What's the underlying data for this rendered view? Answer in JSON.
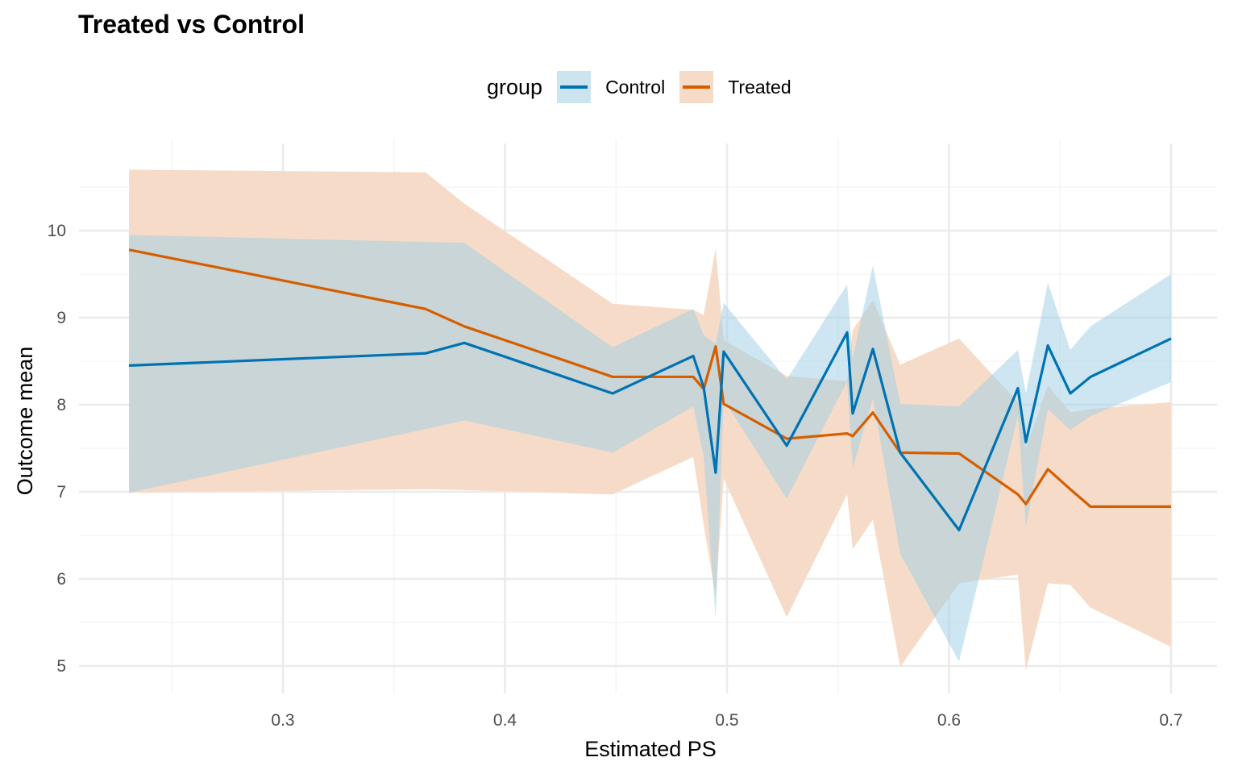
{
  "chart_data": {
    "type": "line",
    "title": "Treated vs Control",
    "xlabel": "Estimated PS",
    "ylabel": "Outcome mean",
    "xlim": [
      0.215,
      0.712
    ],
    "ylim": [
      4.65,
      11.1
    ],
    "xticks": [
      0.3,
      0.4,
      0.5,
      0.6,
      0.7
    ],
    "xtick_labels": [
      "0.3",
      "0.4",
      "0.5",
      "0.6",
      "0.7"
    ],
    "yticks": [
      5,
      6,
      7,
      8,
      9,
      10
    ],
    "ytick_labels": [
      "5",
      "6",
      "7",
      "8",
      "9",
      "10"
    ],
    "grid": true,
    "legend": {
      "title": "group",
      "position": "top"
    },
    "series": [
      {
        "name": "Control",
        "color": "#0072B2",
        "ribbon_color": "#56B4E9",
        "x": [
          0.2307,
          0.3642,
          0.3817,
          0.4485,
          0.4848,
          0.4895,
          0.4949,
          0.4985,
          0.5269,
          0.5541,
          0.5566,
          0.5657,
          0.578,
          0.6045,
          0.631,
          0.6346,
          0.6445,
          0.6546,
          0.6637,
          0.7
        ],
        "y": [
          8.45,
          8.59,
          8.71,
          8.13,
          8.56,
          8.2,
          7.22,
          8.61,
          7.53,
          8.83,
          7.9,
          8.64,
          7.45,
          6.56,
          8.19,
          7.57,
          8.68,
          8.13,
          8.32,
          8.76
        ],
        "lower": [
          6.99,
          7.72,
          7.82,
          7.45,
          7.98,
          7.4,
          5.55,
          8.06,
          6.92,
          8.27,
          7.27,
          8.07,
          6.29,
          5.05,
          7.87,
          6.59,
          7.95,
          7.71,
          7.87,
          8.26
        ],
        "upper": [
          9.95,
          9.87,
          9.86,
          8.66,
          9.1,
          8.8,
          8.7,
          9.17,
          8.29,
          9.38,
          8.53,
          9.6,
          8.01,
          7.98,
          8.63,
          8.13,
          9.4,
          8.63,
          8.9,
          9.5
        ]
      },
      {
        "name": "Treated",
        "color": "#D55E00",
        "ribbon_color": "#E69F00",
        "x": [
          0.2307,
          0.3642,
          0.3817,
          0.4485,
          0.4848,
          0.4895,
          0.4949,
          0.4985,
          0.5269,
          0.5541,
          0.5566,
          0.5657,
          0.578,
          0.6045,
          0.631,
          0.6346,
          0.6445,
          0.6546,
          0.6637,
          0.7
        ],
        "y": [
          9.78,
          9.1,
          8.9,
          8.32,
          8.32,
          8.18,
          8.67,
          8.01,
          7.61,
          7.67,
          7.64,
          7.91,
          7.45,
          7.44,
          6.97,
          6.86,
          7.26,
          7.03,
          6.83,
          6.83
        ],
        "lower": [
          6.99,
          7.03,
          7.02,
          6.97,
          7.4,
          6.62,
          5.8,
          7.15,
          5.56,
          6.97,
          6.34,
          6.68,
          4.99,
          5.95,
          6.05,
          4.95,
          5.95,
          5.93,
          5.67,
          5.22
        ],
        "upper": [
          10.7,
          10.67,
          10.31,
          9.16,
          9.09,
          9.03,
          9.8,
          8.74,
          8.33,
          8.27,
          8.86,
          9.2,
          8.46,
          8.76,
          8.03,
          7.5,
          8.22,
          7.91,
          7.95,
          8.03
        ]
      }
    ]
  }
}
